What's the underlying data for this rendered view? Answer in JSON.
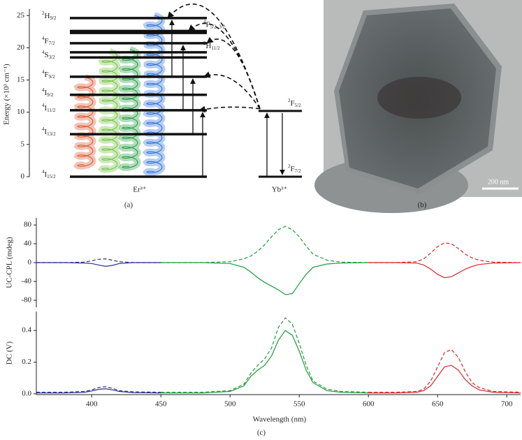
{
  "panel_labels": [
    "(a)",
    "(b)",
    "(c)"
  ],
  "scale_bar": "200 nm",
  "chart_data": [
    {
      "type": "levels",
      "ylabel": "Energy (×10³ cm⁻¹)",
      "ylim": [
        0,
        26
      ],
      "yticks": [
        0,
        5,
        10,
        15,
        20,
        25
      ],
      "ions": [
        "Er³⁺",
        "Yb³⁺"
      ],
      "levels": [
        {
          "value": 24.6,
          "sup": "2",
          "term": "H",
          "sub": "9/2",
          "side": "left"
        },
        {
          "value": 22.6,
          "sup": "4",
          "term": "F",
          "sub": "5/2, 3/2",
          "side": "right"
        },
        {
          "value": 22.3
        },
        {
          "value": 20.7,
          "sup": "4",
          "term": "F",
          "sub": "7/2",
          "side": "left"
        },
        {
          "value": 19.3,
          "sup": "2",
          "term": "H",
          "sub": "11/2",
          "side": "right"
        },
        {
          "value": 18.5,
          "sup": "4",
          "term": "S",
          "sub": "3/2",
          "side": "left"
        },
        {
          "value": 15.5,
          "sup": "4",
          "term": "F",
          "sub": "9/2",
          "side": "left"
        },
        {
          "value": 12.7,
          "sup": "4",
          "term": "I",
          "sub": "9/2",
          "side": "left"
        },
        {
          "value": 10.3,
          "sup": "4",
          "term": "I",
          "sub": "11/2",
          "side": "left"
        },
        {
          "value": 6.6,
          "sup": "4",
          "term": "I",
          "sub": "13/2",
          "side": "left"
        },
        {
          "value": 0,
          "sup": "4",
          "term": "I",
          "sub": "15/2",
          "side": "left"
        }
      ],
      "yb_levels": [
        {
          "value": 10.2,
          "sup": "2",
          "term": "F",
          "sub": "5/2"
        },
        {
          "value": 0,
          "sup": "2",
          "term": "F",
          "sub": "7/2"
        }
      ]
    },
    {
      "type": "line",
      "ylabel": "UC-CPL (mdeg)",
      "xlim": [
        360,
        710
      ],
      "ylim": [
        -95,
        95
      ],
      "yticks": [
        80,
        40,
        0,
        -40,
        -80
      ],
      "series": [
        {
          "color": "#2b2f8f",
          "dashed": true,
          "x": [
            360,
            380,
            395,
            400,
            405,
            410,
            415,
            420,
            430,
            450
          ],
          "values": [
            0,
            0,
            1,
            4,
            7,
            8,
            5,
            2,
            0,
            0
          ]
        },
        {
          "color": "#2b2f8f",
          "dashed": false,
          "x": [
            360,
            380,
            395,
            400,
            405,
            410,
            415,
            420,
            430,
            450
          ],
          "values": [
            0,
            0,
            -1,
            -2,
            -5,
            -8,
            -6,
            -2,
            0,
            0
          ]
        },
        {
          "color": "#1f9a3c",
          "dashed": true,
          "x": [
            450,
            480,
            500,
            510,
            515,
            520,
            525,
            530,
            535,
            540,
            545,
            550,
            555,
            560,
            570,
            580,
            600
          ],
          "values": [
            0,
            0,
            2,
            8,
            14,
            24,
            38,
            55,
            70,
            77,
            70,
            55,
            35,
            18,
            5,
            1,
            0
          ]
        },
        {
          "color": "#1f9a3c",
          "dashed": false,
          "x": [
            450,
            480,
            500,
            510,
            515,
            520,
            525,
            530,
            535,
            540,
            545,
            550,
            555,
            560,
            570,
            580,
            600
          ],
          "values": [
            0,
            0,
            -2,
            -10,
            -20,
            -32,
            -42,
            -50,
            -58,
            -68,
            -66,
            -45,
            -25,
            -10,
            -3,
            -1,
            0
          ]
        },
        {
          "color": "#d9262c",
          "dashed": true,
          "x": [
            600,
            620,
            635,
            640,
            645,
            650,
            655,
            660,
            665,
            670,
            675,
            680,
            690,
            710
          ],
          "values": [
            0,
            0,
            2,
            8,
            20,
            34,
            42,
            40,
            30,
            18,
            10,
            5,
            1,
            0
          ]
        },
        {
          "color": "#d9262c",
          "dashed": false,
          "x": [
            600,
            620,
            635,
            640,
            645,
            650,
            655,
            660,
            665,
            670,
            675,
            680,
            690,
            710
          ],
          "values": [
            0,
            0,
            -1,
            -5,
            -14,
            -25,
            -32,
            -30,
            -22,
            -14,
            -8,
            -4,
            -1,
            0
          ]
        }
      ]
    },
    {
      "type": "line",
      "ylabel": "DC (V)",
      "xlabel": "Wavelength (nm)",
      "xlim": [
        360,
        710
      ],
      "xticks": [
        400,
        450,
        500,
        550,
        600,
        650,
        700
      ],
      "ylim": [
        -0.005,
        0.52
      ],
      "yticks": [
        {
          "value": 0,
          "label": "0.0"
        },
        0.2,
        0.4
      ],
      "series": [
        {
          "color": "#2b2f8f",
          "dashed": true,
          "x": [
            360,
            380,
            395,
            400,
            405,
            410,
            415,
            420,
            430,
            450
          ],
          "values": [
            0.01,
            0.01,
            0.015,
            0.025,
            0.04,
            0.045,
            0.035,
            0.02,
            0.012,
            0.01
          ]
        },
        {
          "color": "#2b2f8f",
          "dashed": false,
          "x": [
            360,
            380,
            395,
            400,
            405,
            410,
            415,
            420,
            430,
            450
          ],
          "values": [
            0.005,
            0.005,
            0.01,
            0.018,
            0.028,
            0.032,
            0.025,
            0.015,
            0.008,
            0.005
          ]
        },
        {
          "color": "#1f9a3c",
          "dashed": true,
          "x": [
            450,
            480,
            500,
            510,
            515,
            520,
            525,
            530,
            535,
            540,
            545,
            550,
            555,
            560,
            570,
            580,
            600
          ],
          "values": [
            0.01,
            0.01,
            0.02,
            0.06,
            0.13,
            0.18,
            0.22,
            0.29,
            0.42,
            0.48,
            0.44,
            0.32,
            0.18,
            0.08,
            0.03,
            0.015,
            0.01
          ]
        },
        {
          "color": "#1f9a3c",
          "dashed": false,
          "x": [
            450,
            480,
            500,
            510,
            515,
            520,
            525,
            530,
            535,
            540,
            545,
            550,
            555,
            560,
            570,
            580,
            600
          ],
          "values": [
            0.005,
            0.005,
            0.015,
            0.05,
            0.11,
            0.15,
            0.18,
            0.24,
            0.34,
            0.4,
            0.37,
            0.27,
            0.15,
            0.07,
            0.02,
            0.01,
            0.005
          ]
        },
        {
          "color": "#d9262c",
          "dashed": true,
          "x": [
            600,
            620,
            635,
            640,
            645,
            650,
            655,
            660,
            665,
            670,
            675,
            680,
            690,
            710
          ],
          "values": [
            0.01,
            0.01,
            0.015,
            0.03,
            0.08,
            0.17,
            0.26,
            0.28,
            0.23,
            0.14,
            0.07,
            0.04,
            0.015,
            0.01
          ]
        },
        {
          "color": "#d9262c",
          "dashed": false,
          "x": [
            600,
            620,
            635,
            640,
            645,
            650,
            655,
            660,
            665,
            670,
            675,
            680,
            690,
            710
          ],
          "values": [
            0.005,
            0.005,
            0.01,
            0.02,
            0.05,
            0.11,
            0.17,
            0.18,
            0.15,
            0.09,
            0.05,
            0.025,
            0.01,
            0.005
          ]
        }
      ]
    }
  ]
}
